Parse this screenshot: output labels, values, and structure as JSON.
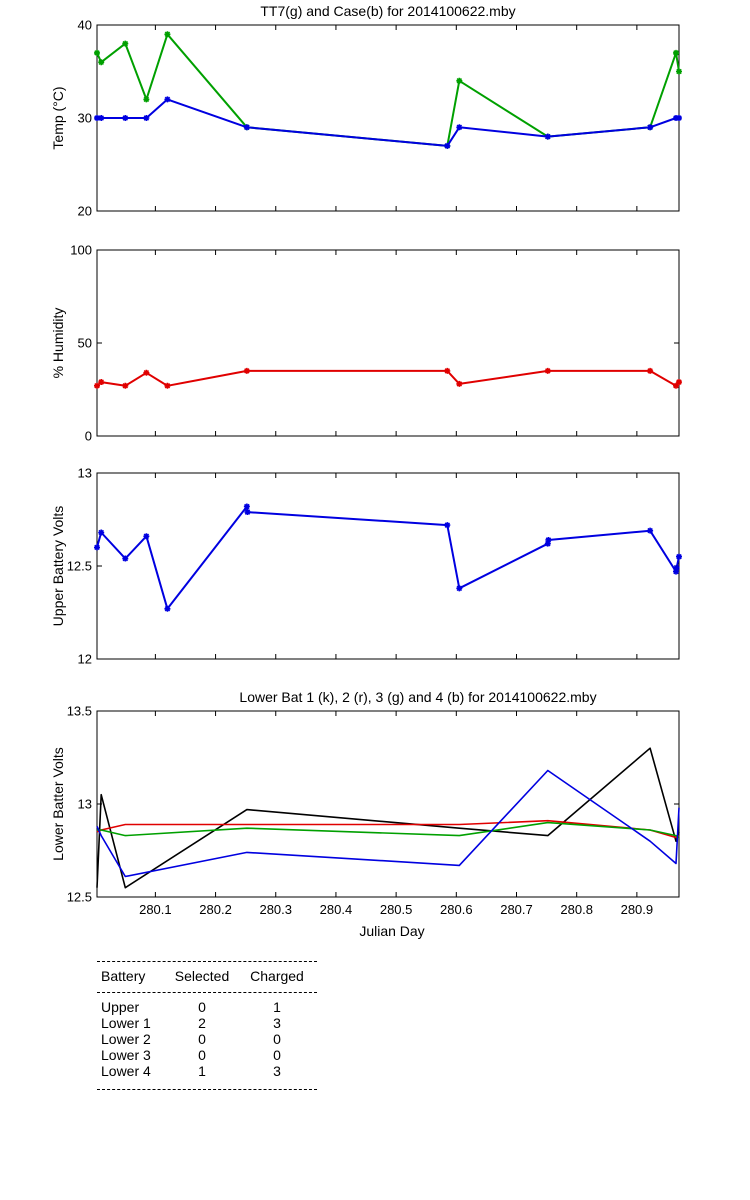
{
  "chart_data": [
    {
      "type": "line",
      "title": "TT7(g) and Case(b) for 2014100622.mby",
      "xlabel": "",
      "ylabel": "Temp  (°C)",
      "xlim": [
        280.003,
        280.97
      ],
      "ylim": [
        20,
        40
      ],
      "yticks": [
        "20",
        "30",
        "40"
      ],
      "grid": false,
      "series": [
        {
          "color": "#00a000",
          "markers": true,
          "x": [
            280.003,
            280.01,
            280.05,
            280.085,
            280.12,
            280.252,
            280.585,
            280.605,
            280.752,
            280.922,
            280.965,
            280.97
          ],
          "y": [
            37,
            36,
            38,
            32,
            39,
            29,
            27,
            34,
            28,
            29,
            37,
            35
          ]
        },
        {
          "color": "#0000e0",
          "markers": true,
          "x": [
            280.003,
            280.01,
            280.05,
            280.085,
            280.12,
            280.252,
            280.585,
            280.605,
            280.752,
            280.922,
            280.965,
            280.97
          ],
          "y": [
            30,
            30,
            30,
            30,
            32,
            29,
            27,
            29,
            28,
            29,
            30,
            30
          ]
        }
      ]
    },
    {
      "type": "line",
      "title": "",
      "xlabel": "",
      "ylabel": "% Humidity",
      "xlim": [
        280.003,
        280.97
      ],
      "ylim": [
        0,
        100
      ],
      "yticks": [
        "0",
        "50",
        "100"
      ],
      "grid": false,
      "series": [
        {
          "color": "#e00000",
          "markers": true,
          "x": [
            280.003,
            280.01,
            280.05,
            280.085,
            280.12,
            280.252,
            280.585,
            280.605,
            280.752,
            280.922,
            280.965,
            280.97
          ],
          "y": [
            27,
            29,
            27,
            34,
            27,
            35,
            35,
            28,
            35,
            35,
            27,
            29
          ]
        }
      ]
    },
    {
      "type": "line",
      "title": "",
      "xlabel": "",
      "ylabel": "Upper Battery Volts",
      "xlim": [
        280.003,
        280.97
      ],
      "ylim": [
        12,
        13
      ],
      "yticks": [
        "12",
        "12.5",
        "13"
      ],
      "grid": false,
      "series": [
        {
          "color": "#0000e0",
          "markers": true,
          "x": [
            280.003,
            280.01,
            280.05,
            280.085,
            280.12,
            280.252,
            280.253,
            280.585,
            280.605,
            280.752,
            280.753,
            280.922,
            280.965,
            280.966,
            280.97
          ],
          "y": [
            12.6,
            12.68,
            12.54,
            12.66,
            12.27,
            12.82,
            12.79,
            12.72,
            12.38,
            12.62,
            12.64,
            12.69,
            12.47,
            12.49,
            12.55
          ]
        }
      ]
    },
    {
      "type": "line",
      "title": "Lower Bat 1 (k), 2 (r), 3 (g) and 4 (b) for 2014100622.mby",
      "xlabel": "Julian Day",
      "ylabel": "Lower Batter Volts",
      "xlim": [
        280.003,
        280.97
      ],
      "ylim": [
        12.5,
        13.5
      ],
      "yticks": [
        "12.5",
        "13",
        "13.5"
      ],
      "xticks": [
        280.1,
        280.2,
        280.3,
        280.4,
        280.5,
        280.6,
        280.7,
        280.8,
        280.9
      ],
      "xtick_labels": [
        "280.1",
        "280.2",
        "280.3",
        "280.4",
        "280.5",
        "280.6",
        "280.7",
        "280.8",
        "280.9"
      ],
      "grid": false,
      "series": [
        {
          "color": "#000000",
          "markers": false,
          "x": [
            280.003,
            280.01,
            280.05,
            280.252,
            280.605,
            280.752,
            280.922,
            280.965,
            280.97
          ],
          "y": [
            12.55,
            13.05,
            12.55,
            12.97,
            12.87,
            12.83,
            13.3,
            12.8,
            12.85
          ]
        },
        {
          "color": "#e00000",
          "markers": false,
          "x": [
            280.003,
            280.01,
            280.05,
            280.252,
            280.605,
            280.752,
            280.922,
            280.965,
            280.97
          ],
          "y": [
            12.85,
            12.86,
            12.89,
            12.89,
            12.89,
            12.91,
            12.86,
            12.82,
            12.83
          ]
        },
        {
          "color": "#00a000",
          "markers": false,
          "x": [
            280.003,
            280.01,
            280.05,
            280.252,
            280.605,
            280.752,
            280.922,
            280.965,
            280.97
          ],
          "y": [
            12.86,
            12.86,
            12.83,
            12.87,
            12.83,
            12.9,
            12.86,
            12.83,
            12.82
          ]
        },
        {
          "color": "#0000e0",
          "markers": false,
          "x": [
            280.003,
            280.01,
            280.05,
            280.252,
            280.605,
            280.752,
            280.922,
            280.965,
            280.97
          ],
          "y": [
            12.88,
            12.83,
            12.61,
            12.74,
            12.67,
            13.18,
            12.8,
            12.68,
            12.98
          ]
        }
      ]
    }
  ],
  "stats_table": {
    "headers": [
      "Battery",
      "Selected",
      "Charged"
    ],
    "rows": [
      [
        "Upper",
        "0",
        "1"
      ],
      [
        "Lower 1",
        "2",
        "3"
      ],
      [
        "Lower 2",
        "0",
        "0"
      ],
      [
        "Lower 3",
        "0",
        "0"
      ],
      [
        "Lower 4",
        "1",
        "3"
      ]
    ]
  }
}
